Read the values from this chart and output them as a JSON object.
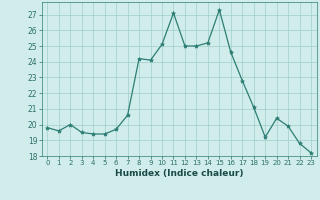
{
  "x": [
    0,
    1,
    2,
    3,
    4,
    5,
    6,
    7,
    8,
    9,
    10,
    11,
    12,
    13,
    14,
    15,
    16,
    17,
    18,
    19,
    20,
    21,
    22,
    23
  ],
  "y": [
    19.8,
    19.6,
    20.0,
    19.5,
    19.4,
    19.4,
    19.7,
    20.6,
    24.2,
    24.1,
    25.1,
    27.1,
    25.0,
    25.0,
    25.2,
    27.3,
    24.6,
    22.8,
    21.1,
    19.2,
    20.4,
    19.9,
    18.8,
    18.2
  ],
  "xlabel": "Humidex (Indice chaleur)",
  "ylim": [
    18,
    27.8
  ],
  "yticks": [
    18,
    19,
    20,
    21,
    22,
    23,
    24,
    25,
    26,
    27
  ],
  "xticks": [
    0,
    1,
    2,
    3,
    4,
    5,
    6,
    7,
    8,
    9,
    10,
    11,
    12,
    13,
    14,
    15,
    16,
    17,
    18,
    19,
    20,
    21,
    22,
    23
  ],
  "xtick_labels": [
    "0",
    "1",
    "2",
    "3",
    "4",
    "5",
    "6",
    "7",
    "8",
    "9",
    "10",
    "11",
    "12",
    "13",
    "14",
    "15",
    "16",
    "17",
    "18",
    "19",
    "20",
    "21",
    "22",
    "23"
  ],
  "line_color": "#2d7e74",
  "marker_color": "#2d7e74",
  "bg_color": "#d0edeb",
  "grid_color": "#a0cdc9",
  "fig_bg": "#d0edeb"
}
